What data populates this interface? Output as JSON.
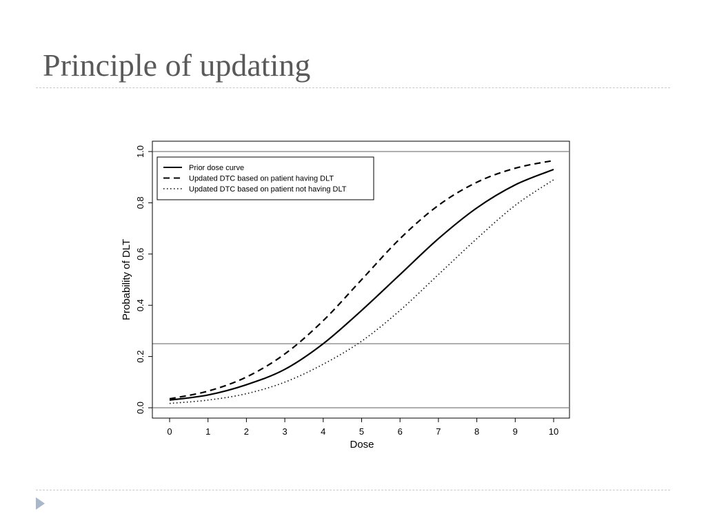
{
  "slide": {
    "title": "Principle of updating",
    "arrow_color": "#a9b7c8"
  },
  "chart_data": {
    "type": "line",
    "title": "",
    "xlabel": "Dose",
    "ylabel": "Probability of DLT",
    "xlim": [
      0,
      10
    ],
    "ylim": [
      0,
      1
    ],
    "x_ticks": [
      "0",
      "1",
      "2",
      "3",
      "4",
      "5",
      "6",
      "7",
      "8",
      "9",
      "10"
    ],
    "y_ticks": [
      "0.0",
      "0.2",
      "0.4",
      "0.6",
      "0.8",
      "1.0"
    ],
    "grid": false,
    "legend_position": "top-left",
    "reference_lines": [
      0,
      0.25,
      1.0
    ],
    "x": [
      0,
      1,
      2,
      3,
      4,
      5,
      6,
      7,
      8,
      9,
      10
    ],
    "series": [
      {
        "name": "Prior dose curve",
        "style": "solid",
        "values": [
          0.03,
          0.05,
          0.09,
          0.15,
          0.25,
          0.38,
          0.52,
          0.66,
          0.78,
          0.87,
          0.93
        ]
      },
      {
        "name": "Updated DTC based on patient having DLT",
        "style": "dashed",
        "values": [
          0.035,
          0.065,
          0.12,
          0.21,
          0.34,
          0.5,
          0.66,
          0.79,
          0.88,
          0.935,
          0.965
        ]
      },
      {
        "name": "Updated DTC based on patient not having DLT",
        "style": "dotted",
        "values": [
          0.017,
          0.03,
          0.055,
          0.1,
          0.17,
          0.26,
          0.38,
          0.52,
          0.66,
          0.79,
          0.89
        ]
      }
    ]
  }
}
